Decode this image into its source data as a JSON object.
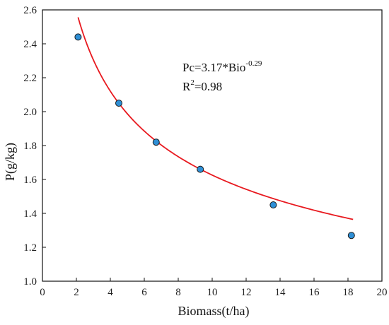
{
  "chart_data": {
    "type": "scatter",
    "xlabel": "Biomass(t/ha)",
    "ylabel": "P(g/kg)",
    "xlim": [
      0,
      20
    ],
    "ylim": [
      1.0,
      2.6
    ],
    "xticks": [
      0,
      2,
      4,
      6,
      8,
      10,
      12,
      14,
      16,
      18,
      20
    ],
    "yticks": [
      1.0,
      1.2,
      1.4,
      1.6,
      1.8,
      2.0,
      2.2,
      2.4,
      2.6
    ],
    "xtick_labels": [
      "0",
      "2",
      "4",
      "6",
      "8",
      "10",
      "12",
      "14",
      "16",
      "18",
      "20"
    ],
    "ytick_labels": [
      "1.0",
      "1.2",
      "1.4",
      "1.6",
      "1.8",
      "2.0",
      "2.2",
      "2.4",
      "2.6"
    ],
    "grid": false,
    "series": [
      {
        "type": "scatter",
        "x": [
          2.1,
          4.5,
          6.7,
          9.3,
          13.6,
          18.2
        ],
        "y": [
          2.44,
          2.05,
          1.82,
          1.66,
          1.45,
          1.27
        ],
        "color": "#2e8fd6",
        "edge_color": "#1a1a1a"
      },
      {
        "type": "line",
        "fit": {
          "form": "power",
          "a": 3.17,
          "b": -0.29,
          "x_range": [
            2.1,
            18.3
          ]
        },
        "color": "#e8191f"
      }
    ],
    "annotations": [
      {
        "base": "Pc=3.17*Bio",
        "sup": "-0.29"
      },
      {
        "base": "R",
        "sup": "2",
        "tail": "=0.98"
      }
    ]
  }
}
